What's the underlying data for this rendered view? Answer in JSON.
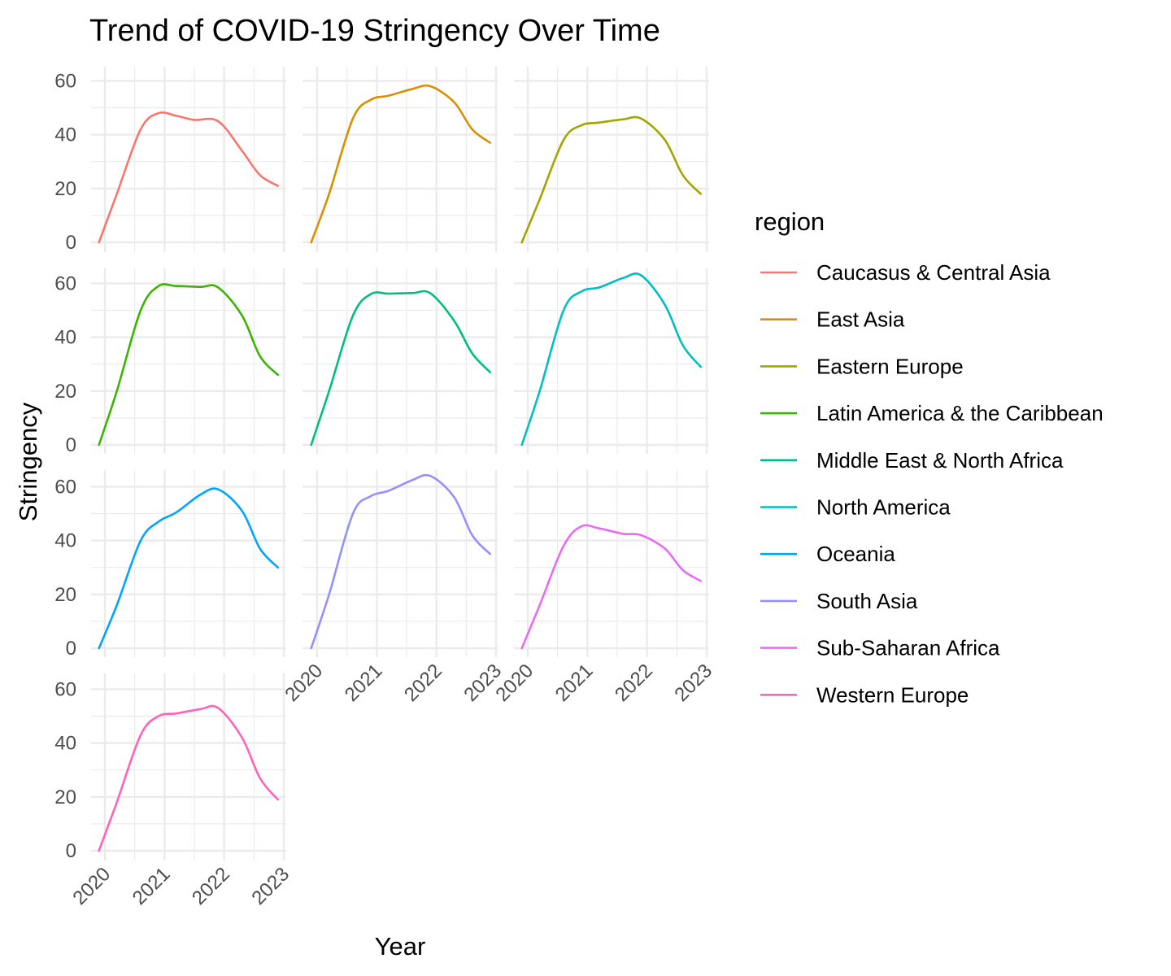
{
  "chart_data": {
    "type": "line",
    "title": "Trend of COVID-19 Stringency Over Time",
    "xlabel": "Year",
    "ylabel": "Stringency",
    "x_ticks": [
      "2020",
      "2021",
      "2022",
      "2023"
    ],
    "y_ticks": [
      "0",
      "20",
      "40",
      "60"
    ],
    "xlim": [
      2019.9,
      2022.9
    ],
    "ylim": [
      0,
      65
    ],
    "facet_layout": "wrap, 3 columns",
    "grid": true,
    "legend": {
      "title": "region",
      "position": "right"
    },
    "series": [
      {
        "name": "Caucasus & Central Asia",
        "color": "#F8766D",
        "points": [
          [
            2019.9,
            0
          ],
          [
            2020.2,
            18
          ],
          [
            2020.6,
            42
          ],
          [
            2020.9,
            48
          ],
          [
            2021.2,
            47
          ],
          [
            2021.5,
            45.5
          ],
          [
            2021.9,
            45
          ],
          [
            2022.3,
            34
          ],
          [
            2022.6,
            25
          ],
          [
            2022.9,
            21
          ]
        ]
      },
      {
        "name": "East Asia",
        "color": "#D89000",
        "points": [
          [
            2019.9,
            0
          ],
          [
            2020.2,
            18
          ],
          [
            2020.6,
            46
          ],
          [
            2020.9,
            53
          ],
          [
            2021.2,
            54.5
          ],
          [
            2021.6,
            57
          ],
          [
            2021.9,
            58
          ],
          [
            2022.3,
            52
          ],
          [
            2022.6,
            42
          ],
          [
            2022.9,
            37
          ]
        ]
      },
      {
        "name": "Eastern Europe",
        "color": "#A3A500",
        "points": [
          [
            2019.9,
            0
          ],
          [
            2020.2,
            16
          ],
          [
            2020.6,
            38
          ],
          [
            2020.9,
            43.5
          ],
          [
            2021.2,
            44.5
          ],
          [
            2021.6,
            45.7
          ],
          [
            2021.9,
            46
          ],
          [
            2022.3,
            38
          ],
          [
            2022.6,
            25
          ],
          [
            2022.9,
            18
          ]
        ]
      },
      {
        "name": "Latin America & the Caribbean",
        "color": "#39B600",
        "points": [
          [
            2019.9,
            0
          ],
          [
            2020.2,
            20
          ],
          [
            2020.6,
            50
          ],
          [
            2020.9,
            59
          ],
          [
            2021.2,
            59
          ],
          [
            2021.6,
            58.7
          ],
          [
            2021.9,
            58.5
          ],
          [
            2022.3,
            48
          ],
          [
            2022.6,
            33
          ],
          [
            2022.9,
            26
          ]
        ]
      },
      {
        "name": "Middle East & North Africa",
        "color": "#00BF7D",
        "points": [
          [
            2019.9,
            0
          ],
          [
            2020.2,
            20
          ],
          [
            2020.6,
            48
          ],
          [
            2020.9,
            56
          ],
          [
            2021.2,
            56.2
          ],
          [
            2021.6,
            56.4
          ],
          [
            2021.9,
            56.3
          ],
          [
            2022.3,
            46
          ],
          [
            2022.6,
            34
          ],
          [
            2022.9,
            27
          ]
        ]
      },
      {
        "name": "North America",
        "color": "#00BFC4",
        "points": [
          [
            2019.9,
            0
          ],
          [
            2020.2,
            20
          ],
          [
            2020.6,
            50
          ],
          [
            2020.9,
            57
          ],
          [
            2021.2,
            58.5
          ],
          [
            2021.6,
            62
          ],
          [
            2021.9,
            63
          ],
          [
            2022.3,
            52
          ],
          [
            2022.6,
            37
          ],
          [
            2022.9,
            29
          ]
        ]
      },
      {
        "name": "Oceania",
        "color": "#00A5FF",
        "points": [
          [
            2019.9,
            0
          ],
          [
            2020.2,
            16
          ],
          [
            2020.6,
            40
          ],
          [
            2020.9,
            47
          ],
          [
            2021.2,
            50.5
          ],
          [
            2021.6,
            57
          ],
          [
            2021.9,
            59
          ],
          [
            2022.3,
            51
          ],
          [
            2022.6,
            37
          ],
          [
            2022.9,
            30
          ]
        ]
      },
      {
        "name": "South Asia",
        "color": "#9590FF",
        "points": [
          [
            2019.9,
            0
          ],
          [
            2020.2,
            20
          ],
          [
            2020.6,
            50
          ],
          [
            2020.9,
            56.5
          ],
          [
            2021.2,
            58.5
          ],
          [
            2021.6,
            62.5
          ],
          [
            2021.9,
            64
          ],
          [
            2022.3,
            56
          ],
          [
            2022.6,
            42
          ],
          [
            2022.9,
            35
          ]
        ]
      },
      {
        "name": "Sub-Saharan Africa",
        "color": "#E76BF3",
        "points": [
          [
            2019.9,
            0
          ],
          [
            2020.2,
            16
          ],
          [
            2020.6,
            38
          ],
          [
            2020.9,
            45.3
          ],
          [
            2021.2,
            44.5
          ],
          [
            2021.6,
            42.5
          ],
          [
            2021.9,
            42
          ],
          [
            2022.3,
            37
          ],
          [
            2022.6,
            29
          ],
          [
            2022.9,
            25
          ]
        ]
      },
      {
        "name": "Western Europe",
        "color": "#FF62BC",
        "points": [
          [
            2019.9,
            0
          ],
          [
            2020.2,
            18
          ],
          [
            2020.6,
            43
          ],
          [
            2020.9,
            50
          ],
          [
            2021.2,
            51
          ],
          [
            2021.6,
            52.6
          ],
          [
            2021.9,
            53
          ],
          [
            2022.3,
            42
          ],
          [
            2022.6,
            27
          ],
          [
            2022.9,
            19
          ]
        ]
      }
    ]
  }
}
